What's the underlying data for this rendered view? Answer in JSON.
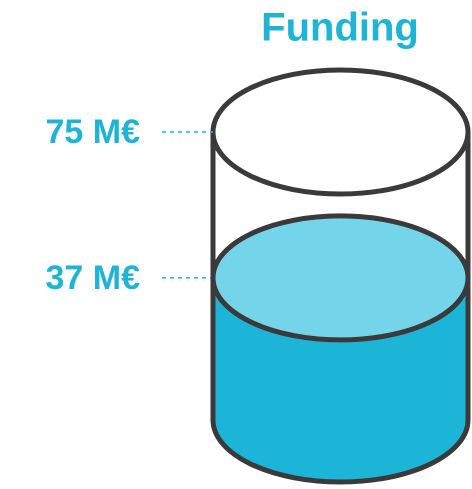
{
  "chart_data": {
    "type": "cylinder",
    "title": "Funding",
    "values": [
      37
    ],
    "value_labels": [
      "37 M€"
    ],
    "ylim": [
      0,
      75
    ],
    "yticks": [
      {
        "value": 75,
        "label": "75 M€"
      }
    ],
    "color": "#1cb5d8",
    "top_color": "#74d5ea"
  }
}
